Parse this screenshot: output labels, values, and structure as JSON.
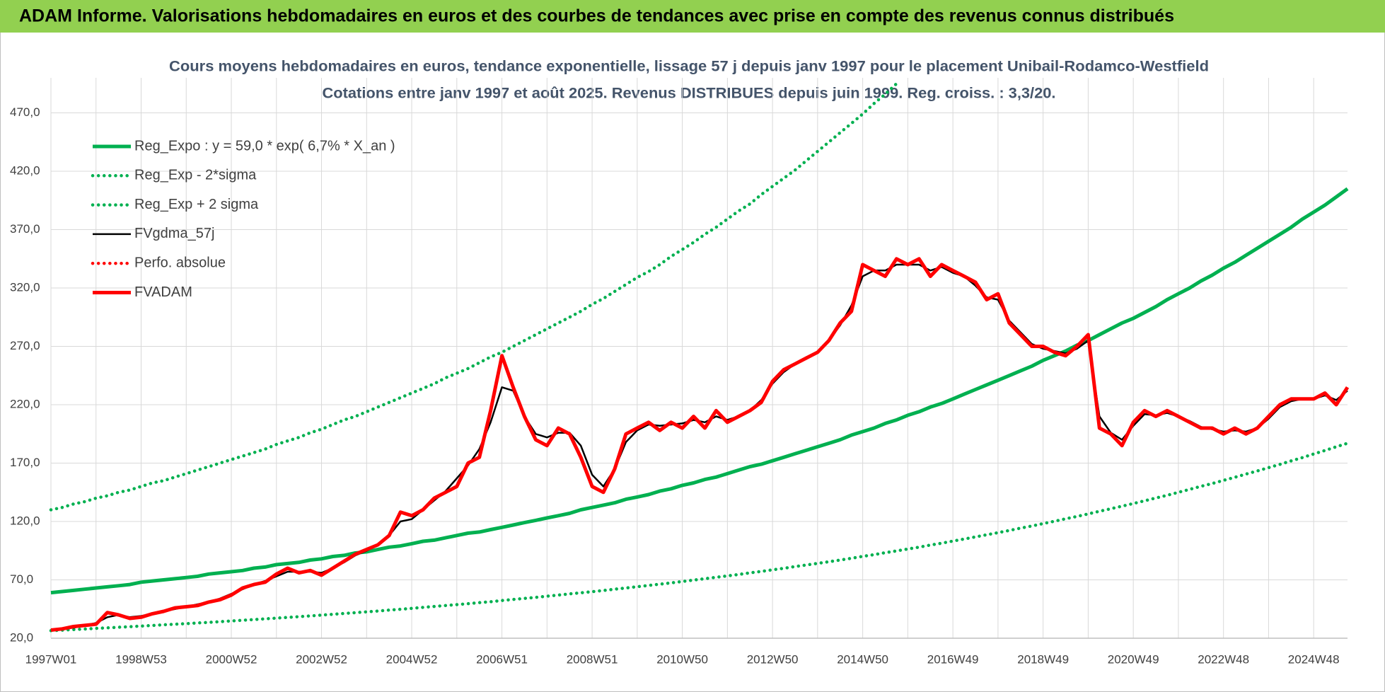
{
  "chart_data": {
    "type": "line",
    "title": "ADAM Informe. Valorisations hebdomadaires en euros et des courbes de tendances avec prise en compte des revenus connus distribués",
    "subtitle": [
      "Cours moyens hebdomadaires en euros, tendance exponentielle, lissage 57 j depuis janv 1997 pour le placement Unibail-Rodamco-Westfield",
      "Cotations entre janv 1997 et août 2025. Revenus DISTRIBUES depuis juin 1999. Reg. croiss. : 3,3/20."
    ],
    "categories": [
      "1997W01",
      null,
      null,
      null,
      null,
      null,
      null,
      null,
      "1998W53",
      null,
      null,
      null,
      null,
      null,
      null,
      null,
      "2000W52",
      null,
      null,
      null,
      null,
      null,
      null,
      null,
      "2002W52",
      null,
      null,
      null,
      null,
      null,
      null,
      null,
      "2004W52",
      null,
      null,
      null,
      null,
      null,
      null,
      null,
      "2006W51",
      null,
      null,
      null,
      null,
      null,
      null,
      null,
      "2008W51",
      null,
      null,
      null,
      null,
      null,
      null,
      null,
      "2010W50",
      null,
      null,
      null,
      null,
      null,
      null,
      null,
      "2012W50",
      null,
      null,
      null,
      null,
      null,
      null,
      null,
      "2014W50",
      null,
      null,
      null,
      null,
      null,
      null,
      null,
      "2016W49",
      null,
      null,
      null,
      null,
      null,
      null,
      null,
      "2018W49",
      null,
      null,
      null,
      null,
      null,
      null,
      null,
      "2020W49",
      null,
      null,
      null,
      null,
      null,
      null,
      null,
      "2022W48",
      null,
      null,
      null,
      null,
      null,
      null,
      null,
      "2024W48",
      null,
      null,
      null
    ],
    "ylim": [
      20,
      500
    ],
    "yticks": [
      {
        "value": 20,
        "label": "20,0"
      },
      {
        "value": 70,
        "label": "70,0"
      },
      {
        "value": 120,
        "label": "120,0"
      },
      {
        "value": 170,
        "label": "170,0"
      },
      {
        "value": 220,
        "label": "220,0"
      },
      {
        "value": 270,
        "label": "270,0"
      },
      {
        "value": 320,
        "label": "320,0"
      },
      {
        "value": 370,
        "label": "370,0"
      },
      {
        "value": 420,
        "label": "420,0"
      },
      {
        "value": 470,
        "label": "470,0"
      }
    ],
    "grid": true,
    "legend": "top-left",
    "series": [
      {
        "name": "Reg_Expo : y = 59,0 * exp( 6,7% *  X_an )",
        "color": "#00b050",
        "dash": "solid",
        "values": [
          59,
          60,
          61,
          62,
          63,
          64,
          65,
          66,
          68,
          69,
          70,
          71,
          72,
          73,
          75,
          76,
          77,
          78,
          80,
          81,
          83,
          84,
          85,
          87,
          88,
          90,
          91,
          93,
          94,
          96,
          98,
          99,
          101,
          103,
          104,
          106,
          108,
          110,
          111,
          113,
          115,
          117,
          119,
          121,
          123,
          125,
          127,
          130,
          132,
          134,
          136,
          139,
          141,
          143,
          146,
          148,
          151,
          153,
          156,
          158,
          161,
          164,
          167,
          169,
          172,
          175,
          178,
          181,
          184,
          187,
          190,
          194,
          197,
          200,
          204,
          207,
          211,
          214,
          218,
          221,
          225,
          229,
          233,
          237,
          241,
          245,
          249,
          253,
          258,
          262,
          266,
          271,
          275,
          280,
          285,
          290,
          294,
          299,
          304,
          310,
          315,
          320,
          326,
          331,
          337,
          342,
          348,
          354,
          360,
          366,
          372,
          379,
          385,
          391,
          398,
          405
        ]
      },
      {
        "name": "Reg_Exp - 2*sigma",
        "color": "#00b050",
        "dash": "dotted",
        "values": [
          26.5,
          26.9,
          27.4,
          27.9,
          28.4,
          28.9,
          29.4,
          29.9,
          30.4,
          30.9,
          31.5,
          32.0,
          32.5,
          33.1,
          33.6,
          34.2,
          34.8,
          35.4,
          36.0,
          36.6,
          37.2,
          37.8,
          38.5,
          39.1,
          39.8,
          40.5,
          41.2,
          41.9,
          42.6,
          43.3,
          44.1,
          44.8,
          45.6,
          46.4,
          47.2,
          48.0,
          48.8,
          49.6,
          50.5,
          51.3,
          52.3,
          53.2,
          54.1,
          55.0,
          56.0,
          57.0,
          58.0,
          58.9,
          59.9,
          60.9,
          62.0,
          63.0,
          64.1,
          65.2,
          66.3,
          67.4,
          68.6,
          69.8,
          71.0,
          72.2,
          73.4,
          74.6,
          76.0,
          77.2,
          78.6,
          79.9,
          81.4,
          82.7,
          84.1,
          85.5,
          87.0,
          88.5,
          90.1,
          91.6,
          93.3,
          94.8,
          96.4,
          98.0,
          99.8,
          101.4,
          103.2,
          105.0,
          106.8,
          108.6,
          110.4,
          112.3,
          114.3,
          116.1,
          118.2,
          120.2,
          122.3,
          124.3,
          126.5,
          128.7,
          130.9,
          133.1,
          135.4,
          137.7,
          140.1,
          142.4,
          145.0,
          147.5,
          150.1,
          152.5,
          155.2,
          157.8,
          160.6,
          163.3,
          166.1,
          168.9,
          171.9,
          174.7,
          177.8,
          180.8,
          184.0,
          187.0
        ]
      },
      {
        "name": "Reg_Exp + 2 sigma",
        "color": "#00b050",
        "dash": "dotted",
        "values": [
          130,
          132,
          135,
          137,
          140,
          142,
          145,
          147,
          150,
          153,
          155,
          158,
          161,
          164,
          167,
          170,
          173,
          176,
          179,
          182,
          186,
          189,
          192,
          196,
          199,
          203,
          207,
          210,
          214,
          218,
          222,
          226,
          230,
          234,
          238,
          243,
          247,
          251,
          256,
          261,
          265,
          270,
          275,
          280,
          285,
          290,
          295,
          300,
          306,
          311,
          317,
          323,
          329,
          334,
          340,
          347,
          353,
          359,
          366,
          372,
          379,
          386,
          392,
          400,
          407,
          414,
          421,
          429,
          437,
          445,
          453,
          461,
          469,
          478,
          486,
          495,
          null,
          null,
          null,
          null,
          null,
          null,
          null,
          null,
          null,
          null,
          null,
          null,
          null,
          null,
          null,
          null,
          null,
          null,
          null,
          null,
          null,
          null,
          null,
          null,
          null,
          null,
          null,
          null,
          null,
          null,
          null,
          null,
          null,
          null,
          null,
          null,
          null,
          null,
          null,
          null
        ]
      },
      {
        "name": "FVgdma_57j",
        "color": "#000000",
        "dash": "solid",
        "values": [
          27,
          28,
          29,
          31,
          33,
          38,
          40,
          38,
          39,
          41,
          43,
          45,
          47,
          49,
          51,
          54,
          58,
          62,
          66,
          69,
          73,
          77,
          77,
          77,
          76,
          80,
          85,
          91,
          95,
          100,
          108,
          120,
          122,
          130,
          138,
          146,
          157,
          168,
          182,
          205,
          235,
          232,
          210,
          195,
          192,
          196,
          196,
          185,
          160,
          150,
          165,
          188,
          198,
          203,
          202,
          203,
          204,
          207,
          205,
          210,
          207,
          210,
          215,
          224,
          238,
          248,
          255,
          260,
          265,
          275,
          288,
          305,
          330,
          335,
          335,
          340,
          340,
          340,
          335,
          338,
          333,
          330,
          322,
          312,
          310,
          292,
          282,
          272,
          268,
          266,
          264,
          268,
          275,
          210,
          196,
          190,
          202,
          212,
          211,
          213,
          210,
          206,
          201,
          199,
          197,
          198,
          197,
          200,
          208,
          218,
          223,
          225,
          225,
          228,
          224,
          232
        ]
      },
      {
        "name": "Perfo. absolue",
        "color": "#ff0000",
        "dash": "dotted",
        "values": [
          null,
          null,
          null,
          null,
          null,
          null,
          null,
          null,
          null,
          null,
          null,
          null,
          null,
          null,
          null,
          null,
          null,
          null,
          null,
          null,
          null,
          null,
          null,
          null,
          null,
          null,
          null,
          null,
          null,
          null,
          null,
          null,
          null,
          null,
          null,
          null,
          null,
          null,
          null,
          null,
          null,
          null,
          null,
          null,
          null,
          null,
          null,
          null,
          null,
          null,
          null,
          null,
          null,
          null,
          null,
          null,
          null,
          null,
          null,
          null,
          null,
          null,
          null,
          null,
          null,
          null,
          null,
          null,
          null,
          null,
          null,
          null,
          null,
          null,
          null,
          null,
          null,
          null,
          null,
          null,
          null,
          null,
          null,
          null,
          null,
          null,
          null,
          null,
          null,
          null,
          null,
          null,
          null,
          null,
          null,
          null,
          null,
          null,
          null,
          null,
          null,
          null,
          null,
          null,
          null,
          null,
          null,
          null,
          null,
          null,
          null,
          null,
          null,
          null,
          null,
          null
        ]
      },
      {
        "name": "FVADAM",
        "color": "#ff0000",
        "dash": "solid",
        "values": [
          27,
          28,
          30,
          31,
          32,
          42,
          40,
          37,
          38,
          41,
          43,
          46,
          47,
          48,
          51,
          53,
          57,
          63,
          66,
          68,
          75,
          80,
          76,
          78,
          74,
          80,
          86,
          92,
          96,
          100,
          108,
          128,
          125,
          130,
          140,
          145,
          150,
          170,
          175,
          215,
          262,
          235,
          210,
          190,
          185,
          200,
          195,
          175,
          150,
          145,
          165,
          195,
          200,
          205,
          198,
          205,
          200,
          210,
          200,
          215,
          205,
          210,
          215,
          222,
          240,
          250,
          255,
          260,
          265,
          275,
          290,
          300,
          340,
          335,
          330,
          345,
          340,
          345,
          330,
          340,
          335,
          330,
          325,
          310,
          315,
          290,
          280,
          270,
          270,
          265,
          262,
          270,
          280,
          200,
          195,
          185,
          205,
          215,
          210,
          215,
          210,
          205,
          200,
          200,
          195,
          200,
          195,
          200,
          210,
          220,
          225,
          225,
          225,
          230,
          220,
          235
        ]
      }
    ]
  }
}
